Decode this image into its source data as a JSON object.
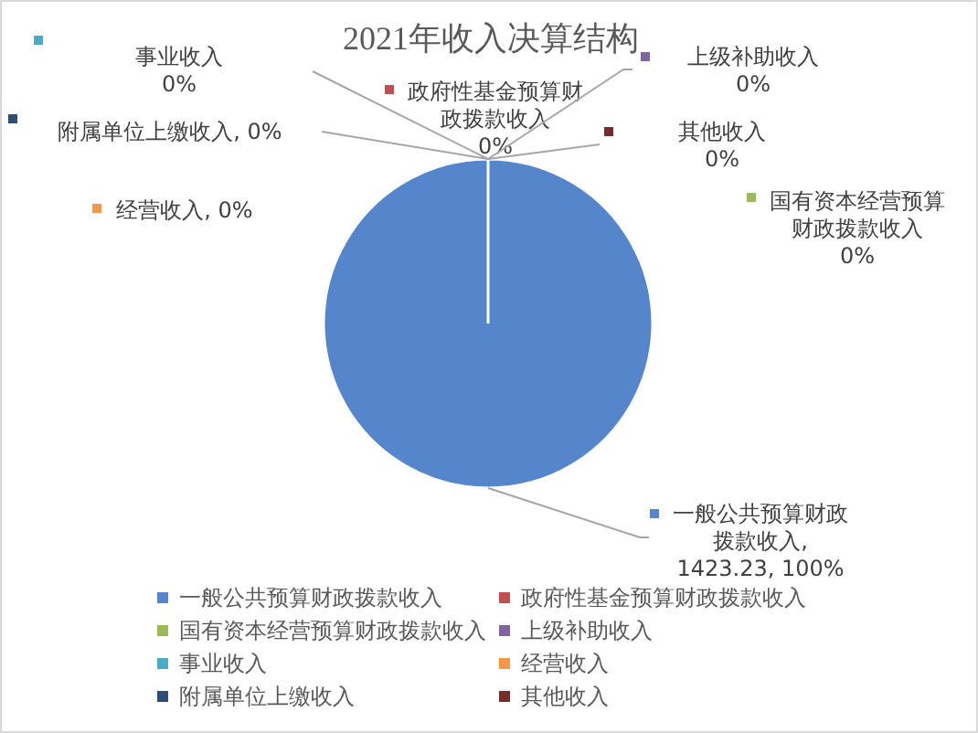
{
  "chart_data": {
    "type": "pie",
    "title": "2021年收入决算结构",
    "categories": [
      "一般公共预算财政拨款收入",
      "政府性基金预算财政拨款收入",
      "国有资本经营预算财政拨款收入",
      "上级补助收入",
      "事业收入",
      "经营收入",
      "附属单位上缴收入",
      "其他收入"
    ],
    "values": [
      1423.23,
      0,
      0,
      0,
      0,
      0,
      0,
      0
    ],
    "colors": [
      "#5586cc",
      "#c0504d",
      "#9bbb59",
      "#8064a2",
      "#4bacc6",
      "#f79646",
      "#2c4d75",
      "#772c2a"
    ],
    "value_labels": [
      "一般公共预算财政拨款收入, 1423.23, 100%",
      "政府性基金预算财政拨款收入 0%",
      "国有资本经营预算财政拨款收入 0%",
      "上级补助收入 0%",
      "事业收入 0%",
      "经营收入, 0%",
      "附属单位上缴收入, 0%",
      "其他收入 0%"
    ],
    "legend": "bottom"
  }
}
